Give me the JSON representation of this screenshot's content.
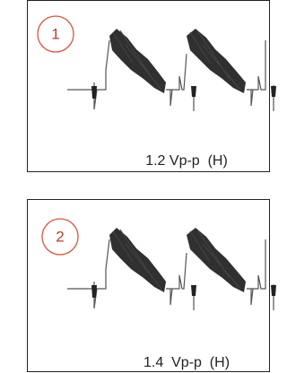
{
  "panels": [
    {
      "number": "1",
      "caption": "1.2 Vp-p  (H)"
    },
    {
      "number": "2",
      "caption": "1.4  Vp-p  (H)"
    }
  ]
}
